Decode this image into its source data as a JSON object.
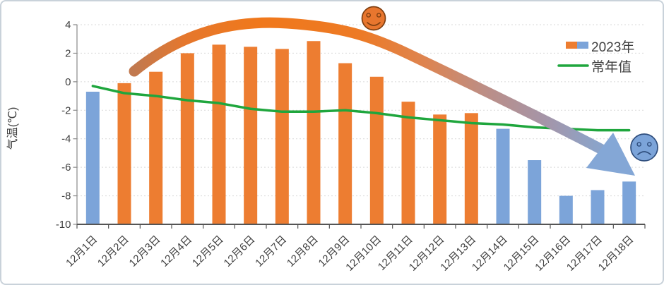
{
  "chart_data": {
    "type": "bar",
    "title": "",
    "xlabel": "",
    "ylabel": "气温(℃)",
    "categories": [
      "12月1日",
      "12月2日",
      "12月3日",
      "12月4日",
      "12月5日",
      "12月6日",
      "12月7日",
      "12月8日",
      "12月9日",
      "12月10日",
      "12月11日",
      "12月12日",
      "12月13日",
      "12月14日",
      "12月15日",
      "12月16日",
      "12月17日",
      "12月18日"
    ],
    "series": [
      {
        "name": "2023年",
        "type": "bar",
        "values": [
          -0.7,
          -0.1,
          0.7,
          2.0,
          2.6,
          2.45,
          2.3,
          2.85,
          1.3,
          0.35,
          -1.4,
          -2.3,
          -2.2,
          -3.3,
          -5.5,
          -8.0,
          -7.6,
          -7.0
        ],
        "point_colors": [
          "blue",
          "orange",
          "orange",
          "orange",
          "orange",
          "orange",
          "orange",
          "orange",
          "orange",
          "orange",
          "orange",
          "orange",
          "orange",
          "blue",
          "blue",
          "blue",
          "blue",
          "blue"
        ]
      },
      {
        "name": "常年值",
        "type": "line",
        "values": [
          -0.3,
          -0.8,
          -1.0,
          -1.3,
          -1.5,
          -1.9,
          -2.1,
          -2.1,
          -2.0,
          -2.2,
          -2.5,
          -2.7,
          -2.9,
          -3.0,
          -3.2,
          -3.3,
          -3.4,
          -3.4
        ]
      }
    ],
    "ylim": [
      -10,
      4
    ],
    "yticks": [
      4,
      2,
      0,
      -2,
      -4,
      -6,
      -8,
      -10
    ],
    "grid": "horizontal-dotted",
    "legend_position": "top-right",
    "axis_crosses_at": -10,
    "annotations": [
      {
        "name": "trend-arrow",
        "desc": "thick curved arrow rising then falling, orange fading to blue"
      },
      {
        "name": "happy-face",
        "desc": "orange smiley above warm peak"
      },
      {
        "name": "sad-face",
        "desc": "blue sad face at cold end"
      }
    ]
  },
  "legend": {
    "items": [
      {
        "label": "2023年",
        "swatch": "orange-blue"
      },
      {
        "label": "常年值",
        "swatch": "green-line"
      }
    ]
  },
  "colors": {
    "orange": "#ED7D31",
    "blue": "#7CA4D9",
    "green": "#1FA63D",
    "axis_text": "#404040",
    "grid": "#D9D9D9",
    "axis_line": "#8a8a8a",
    "axis_line_dark": "#555555",
    "arrow_start": "#C1794F",
    "arrow_mid": "#F0781B",
    "arrow_fade": "#A595A8",
    "arrow_end": "#84A7D6",
    "smiley_fill": "#E8762E",
    "smiley_stroke": "#7E3E10",
    "sad_fill": "#7CA4D9",
    "sad_stroke": "#2F4E7D"
  }
}
